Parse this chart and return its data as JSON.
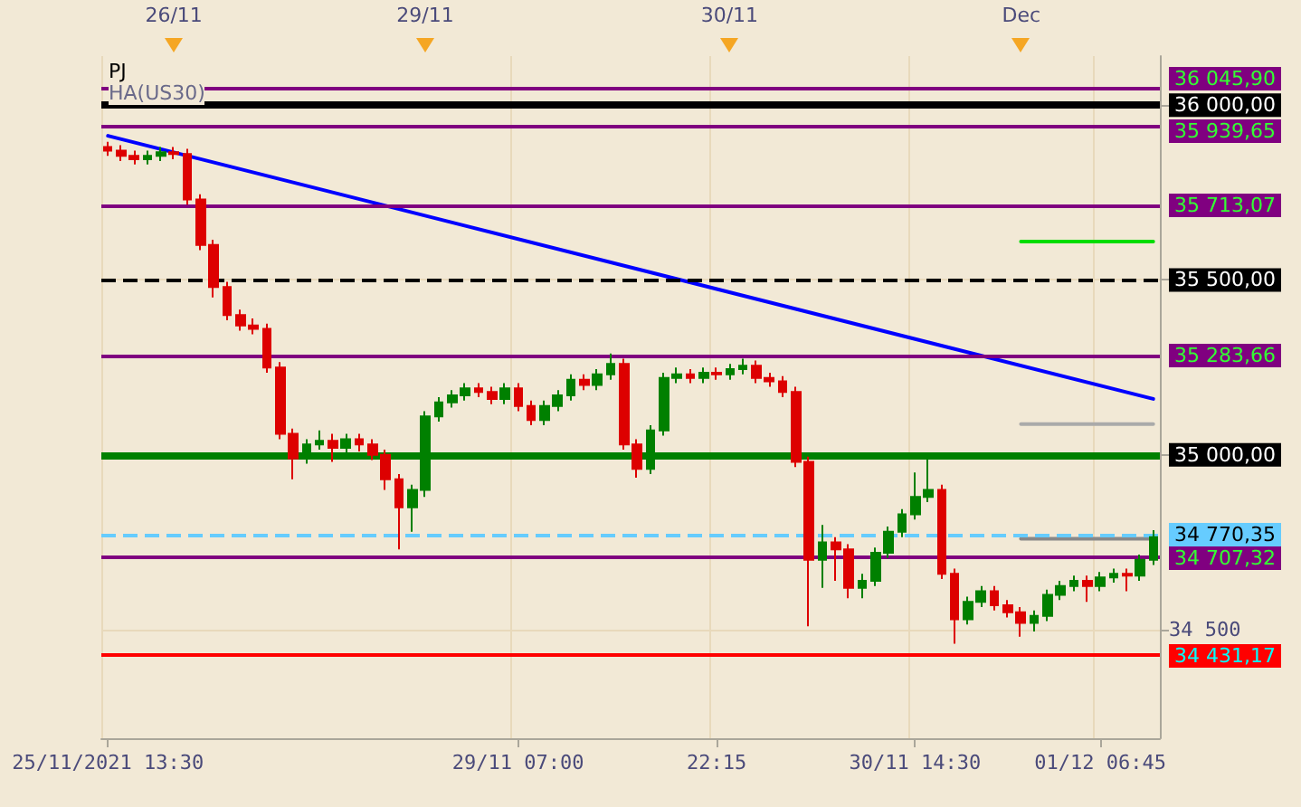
{
  "chart_data": {
    "type": "candlestick",
    "annotations": [
      "PJ",
      "HA(US30)",
      "26/11",
      "29/11",
      "30/11",
      "Dec"
    ],
    "categories": [
      "25/11/2021 13:30",
      null,
      null,
      null,
      null,
      null,
      null,
      null,
      null,
      null,
      null,
      null,
      null,
      null,
      null,
      null,
      null,
      null,
      null,
      null,
      null,
      null,
      null,
      null,
      null,
      null,
      null,
      null,
      null,
      null,
      null,
      "29/11 07:00",
      null,
      null,
      null,
      null,
      null,
      null,
      null,
      null,
      null,
      null,
      null,
      null,
      null,
      null,
      "22:15",
      null,
      null,
      null,
      null,
      null,
      null,
      null,
      null,
      null,
      null,
      null,
      null,
      null,
      null,
      "30/11 14:30",
      null,
      null,
      null,
      null,
      null,
      null,
      null,
      null,
      null,
      null,
      null,
      null,
      null,
      "01/12 06:45",
      null,
      null,
      null,
      null
    ],
    "ohlc": [
      [
        35880,
        35895,
        35855,
        35870
      ],
      [
        35870,
        35885,
        35840,
        35855
      ],
      [
        35855,
        35870,
        35830,
        35845
      ],
      [
        35845,
        35870,
        35830,
        35855
      ],
      [
        35855,
        35880,
        35840,
        35865
      ],
      [
        35865,
        35880,
        35845,
        35860
      ],
      [
        35860,
        35875,
        35715,
        35730
      ],
      [
        35730,
        35745,
        35585,
        35600
      ],
      [
        35600,
        35615,
        35450,
        35480
      ],
      [
        35480,
        35495,
        35385,
        35400
      ],
      [
        35400,
        35415,
        35355,
        35370
      ],
      [
        35370,
        35390,
        35345,
        35360
      ],
      [
        35360,
        35375,
        35235,
        35250
      ],
      [
        35250,
        35265,
        35045,
        35060
      ],
      [
        35060,
        35075,
        34930,
        34990
      ],
      [
        34990,
        35045,
        34975,
        35030
      ],
      [
        35030,
        35070,
        35015,
        35040
      ],
      [
        35040,
        35060,
        34980,
        35020
      ],
      [
        35020,
        35060,
        35005,
        35045
      ],
      [
        35045,
        35060,
        35010,
        35030
      ],
      [
        35030,
        35045,
        34985,
        35000
      ],
      [
        35000,
        35015,
        34900,
        34930
      ],
      [
        34930,
        34945,
        34730,
        34850
      ],
      [
        34850,
        34915,
        34780,
        34900
      ],
      [
        34900,
        35125,
        34880,
        35110
      ],
      [
        35110,
        35165,
        35095,
        35150
      ],
      [
        35150,
        35185,
        35135,
        35170
      ],
      [
        35170,
        35205,
        35155,
        35190
      ],
      [
        35190,
        35205,
        35165,
        35180
      ],
      [
        35180,
        35195,
        35145,
        35160
      ],
      [
        35160,
        35205,
        35145,
        35190
      ],
      [
        35190,
        35205,
        35125,
        35140
      ],
      [
        35140,
        35155,
        35085,
        35100
      ],
      [
        35100,
        35155,
        35085,
        35140
      ],
      [
        35140,
        35185,
        35125,
        35170
      ],
      [
        35170,
        35230,
        35155,
        35215
      ],
      [
        35215,
        35230,
        35185,
        35200
      ],
      [
        35200,
        35245,
        35185,
        35230
      ],
      [
        35230,
        35290,
        35215,
        35260
      ],
      [
        35260,
        35275,
        35015,
        35030
      ],
      [
        35030,
        35045,
        34935,
        34960
      ],
      [
        34960,
        35085,
        34945,
        35070
      ],
      [
        35070,
        35235,
        35055,
        35220
      ],
      [
        35220,
        35250,
        35205,
        35230
      ],
      [
        35230,
        35245,
        35205,
        35220
      ],
      [
        35220,
        35250,
        35205,
        35235
      ],
      [
        35235,
        35250,
        35215,
        35230
      ],
      [
        35230,
        35260,
        35215,
        35245
      ],
      [
        35245,
        35275,
        35230,
        35255
      ],
      [
        35255,
        35270,
        35205,
        35220
      ],
      [
        35220,
        35235,
        35195,
        35210
      ],
      [
        35210,
        35225,
        35165,
        35180
      ],
      [
        35180,
        35195,
        34965,
        34980
      ],
      [
        34980,
        34995,
        34510,
        34700
      ],
      [
        34700,
        34800,
        34620,
        34750
      ],
      [
        34750,
        34765,
        34640,
        34730
      ],
      [
        34730,
        34745,
        34590,
        34620
      ],
      [
        34620,
        34660,
        34590,
        34640
      ],
      [
        34640,
        34735,
        34625,
        34720
      ],
      [
        34720,
        34795,
        34705,
        34780
      ],
      [
        34780,
        34845,
        34765,
        34830
      ],
      [
        34830,
        34950,
        34815,
        34880
      ],
      [
        34880,
        35000,
        34865,
        34900
      ],
      [
        34900,
        34915,
        34645,
        34660
      ],
      [
        34660,
        34675,
        34460,
        34530
      ],
      [
        34530,
        34595,
        34515,
        34580
      ],
      [
        34580,
        34625,
        34565,
        34610
      ],
      [
        34610,
        34625,
        34555,
        34570
      ],
      [
        34570,
        34585,
        34535,
        34550
      ],
      [
        34550,
        34565,
        34480,
        34520
      ],
      [
        34520,
        34555,
        34495,
        34540
      ],
      [
        34540,
        34615,
        34525,
        34600
      ],
      [
        34600,
        34640,
        34585,
        34625
      ],
      [
        34625,
        34655,
        34610,
        34640
      ],
      [
        34640,
        34655,
        34580,
        34625
      ],
      [
        34625,
        34665,
        34610,
        34650
      ],
      [
        34650,
        34675,
        34635,
        34660
      ],
      [
        34660,
        34675,
        34610,
        34655
      ],
      [
        34655,
        34715,
        34640,
        34700
      ],
      [
        34700,
        34785,
        34685,
        34765
      ]
    ],
    "series": [
      {
        "type": "line",
        "color": "#0000ff",
        "values": [
          35912,
          null,
          null,
          null,
          null,
          null,
          null,
          null,
          null,
          null,
          null,
          null,
          null,
          null,
          null,
          null,
          null,
          null,
          null,
          null,
          null,
          null,
          null,
          null,
          null,
          null,
          null,
          null,
          null,
          null,
          null,
          null,
          null,
          null,
          null,
          null,
          null,
          null,
          null,
          null,
          null,
          null,
          null,
          null,
          null,
          null,
          null,
          null,
          null,
          null,
          null,
          null,
          null,
          null,
          null,
          null,
          null,
          null,
          null,
          null,
          null,
          null,
          null,
          null,
          null,
          null,
          null,
          null,
          null,
          null,
          null,
          null,
          null,
          null,
          null,
          null,
          null,
          null,
          null,
          35160
        ]
      },
      {
        "type": "line",
        "color": "#00dd00",
        "values": [
          null,
          null,
          null,
          null,
          null,
          null,
          null,
          null,
          null,
          null,
          null,
          null,
          null,
          null,
          null,
          null,
          null,
          null,
          null,
          null,
          null,
          null,
          null,
          null,
          null,
          null,
          null,
          null,
          null,
          null,
          null,
          null,
          null,
          null,
          null,
          null,
          null,
          null,
          null,
          null,
          null,
          null,
          null,
          null,
          null,
          null,
          null,
          null,
          null,
          null,
          null,
          null,
          null,
          null,
          null,
          null,
          null,
          null,
          null,
          null,
          null,
          null,
          null,
          null,
          null,
          null,
          null,
          null,
          null,
          35610,
          35610,
          35610,
          35610,
          35610,
          35610,
          35610,
          35610,
          35610,
          35610,
          35610
        ]
      },
      {
        "type": "line",
        "color": "#888888",
        "values": [
          null,
          null,
          null,
          null,
          null,
          null,
          null,
          null,
          null,
          null,
          null,
          null,
          null,
          null,
          null,
          null,
          null,
          null,
          null,
          null,
          null,
          null,
          null,
          null,
          null,
          null,
          null,
          null,
          null,
          null,
          null,
          null,
          null,
          null,
          null,
          null,
          null,
          null,
          null,
          null,
          null,
          null,
          null,
          null,
          null,
          null,
          null,
          null,
          null,
          null,
          null,
          null,
          null,
          null,
          null,
          null,
          null,
          null,
          null,
          null,
          null,
          null,
          null,
          null,
          null,
          null,
          null,
          null,
          null,
          34760,
          34760,
          34760,
          34760,
          34760,
          34760,
          34760,
          34760,
          34760,
          34760,
          34760
        ]
      },
      {
        "type": "line",
        "color": "#aaaaaa",
        "values": [
          null,
          null,
          null,
          null,
          null,
          null,
          null,
          null,
          null,
          null,
          null,
          null,
          null,
          null,
          null,
          null,
          null,
          null,
          null,
          null,
          null,
          null,
          null,
          null,
          null,
          null,
          null,
          null,
          null,
          null,
          null,
          null,
          null,
          null,
          null,
          null,
          null,
          null,
          null,
          null,
          null,
          null,
          null,
          null,
          null,
          null,
          null,
          null,
          null,
          null,
          null,
          null,
          null,
          null,
          null,
          null,
          null,
          null,
          null,
          null,
          null,
          null,
          null,
          null,
          null,
          null,
          null,
          null,
          null,
          35088,
          35088,
          35088,
          35088,
          35088,
          35088,
          35088,
          35088,
          35088,
          35088,
          35088
        ]
      }
    ],
    "ref_lines": [
      {
        "axis": "y",
        "value": 36045.9,
        "label": "36 045,90",
        "color": "#800080"
      },
      {
        "axis": "y",
        "value": 36000,
        "color": "#000000"
      },
      {
        "axis": "y",
        "value": 35939.65,
        "label": "35 939,65",
        "color": "#800080"
      },
      {
        "axis": "y",
        "value": 35713.07,
        "label": "35 713,07",
        "color": "#800080"
      },
      {
        "axis": "y",
        "value": 35500,
        "color": "#000000",
        "line_style": "dashed"
      },
      {
        "axis": "y",
        "value": 35283.66,
        "label": "35 283,66",
        "color": "#800080"
      },
      {
        "axis": "y",
        "value": 35000,
        "color": "#008000"
      },
      {
        "axis": "y",
        "value": 34770.35,
        "label": "34 770,35",
        "color": "#66ccff",
        "line_style": "dashed"
      },
      {
        "axis": "y",
        "value": 34707.32,
        "label": "34 707,32",
        "color": "#800080"
      },
      {
        "axis": "y",
        "value": 34431.17,
        "label": "34 431,17",
        "color": "#ff0000"
      }
    ],
    "ylim": [
      34190,
      36140
    ],
    "yticks": [
      {
        "value": 34500,
        "label": "34 500"
      },
      {
        "value": 35000,
        "label": "35 000,00"
      },
      {
        "value": 35500,
        "label": "35 500,00"
      },
      {
        "value": 36000,
        "label": "36 000,00"
      }
    ],
    "grid": true
  }
}
